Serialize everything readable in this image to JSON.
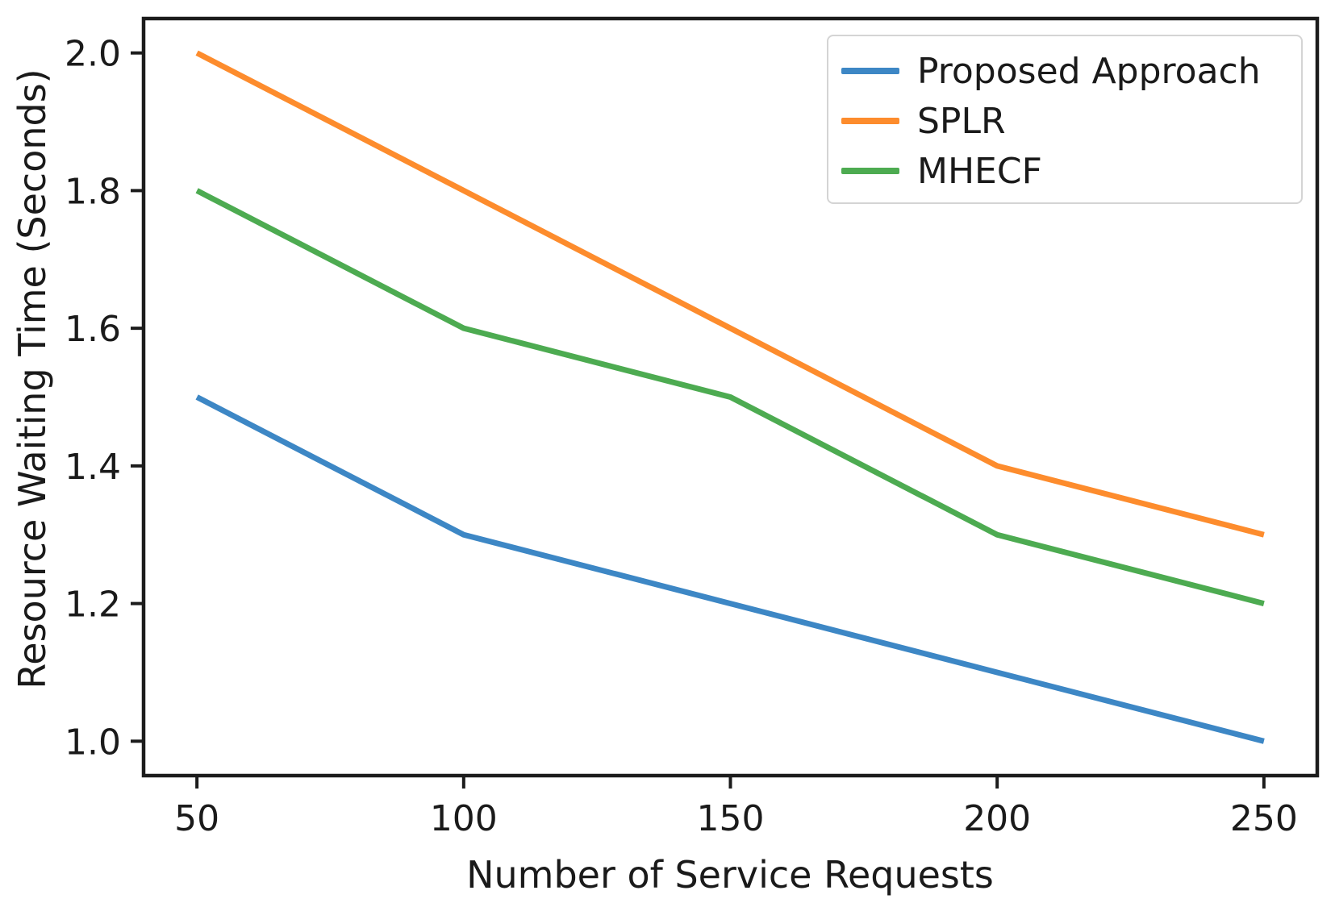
{
  "chart_data": {
    "type": "line",
    "title": "",
    "xlabel": "Number of Service Requests",
    "ylabel": "Resource Waiting Time (Seconds)",
    "x": [
      50,
      100,
      150,
      200,
      250
    ],
    "series": [
      {
        "name": "Proposed Approach",
        "color": "#3d87c5",
        "values": [
          1.5,
          1.3,
          1.2,
          1.1,
          1.0
        ]
      },
      {
        "name": "SPLR",
        "color": "#fd8c2d",
        "values": [
          2.0,
          1.8,
          1.6,
          1.4,
          1.3
        ]
      },
      {
        "name": "MHECF",
        "color": "#4dab51",
        "values": [
          1.8,
          1.6,
          1.5,
          1.3,
          1.2
        ]
      }
    ],
    "xticks": [
      50,
      100,
      150,
      200,
      250
    ],
    "xtick_labels": [
      "50",
      "100",
      "150",
      "200",
      "250"
    ],
    "yticks": [
      1.0,
      1.2,
      1.4,
      1.6,
      1.8,
      2.0
    ],
    "ytick_labels": [
      "1.0",
      "1.2",
      "1.4",
      "1.6",
      "1.8",
      "2.0"
    ],
    "xlim": [
      40,
      260
    ],
    "ylim": [
      0.95,
      2.05
    ],
    "grid": false,
    "legend_position": "upper right",
    "axis_color": "#1c1c1c",
    "line_width": 7
  }
}
